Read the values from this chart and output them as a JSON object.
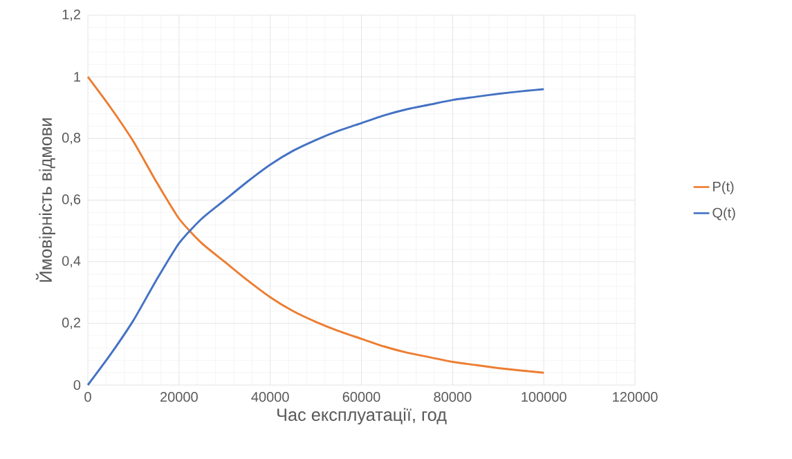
{
  "chart_data": {
    "type": "line",
    "xlabel": "Час експлуатації, год",
    "ylabel": "Ймовірність відмови",
    "x": [
      0,
      5000,
      10000,
      15000,
      20000,
      25000,
      30000,
      35000,
      40000,
      45000,
      50000,
      55000,
      60000,
      65000,
      70000,
      75000,
      80000,
      85000,
      90000,
      95000,
      100000
    ],
    "series": [
      {
        "name": "P(t)",
        "color": "#ed7d31",
        "values": [
          1,
          0.9,
          0.79,
          0.66,
          0.54,
          0.46,
          0.4,
          0.34,
          0.285,
          0.24,
          0.205,
          0.175,
          0.15,
          0.125,
          0.105,
          0.09,
          0.075,
          0.065,
          0.055,
          0.047,
          0.04
        ]
      },
      {
        "name": "Q(t)",
        "color": "#4472c4",
        "values": [
          0,
          0.1,
          0.21,
          0.34,
          0.46,
          0.54,
          0.6,
          0.66,
          0.715,
          0.76,
          0.795,
          0.825,
          0.85,
          0.875,
          0.895,
          0.91,
          0.925,
          0.935,
          0.945,
          0.953,
          0.96
        ]
      }
    ],
    "xlim": [
      0,
      120000
    ],
    "xticks": [
      0,
      20000,
      40000,
      60000,
      80000,
      100000,
      120000
    ],
    "ylim": [
      0,
      1.2
    ],
    "yticks": [
      0,
      {
        "value": 0.2,
        "label": "0,2"
      },
      {
        "value": 0.4,
        "label": "0,4"
      },
      {
        "value": 0.6,
        "label": "0,6"
      },
      {
        "value": 0.8,
        "label": "0,8"
      },
      1,
      {
        "value": 1.2,
        "label": "1,2"
      }
    ],
    "grid": true,
    "legend": "right"
  }
}
